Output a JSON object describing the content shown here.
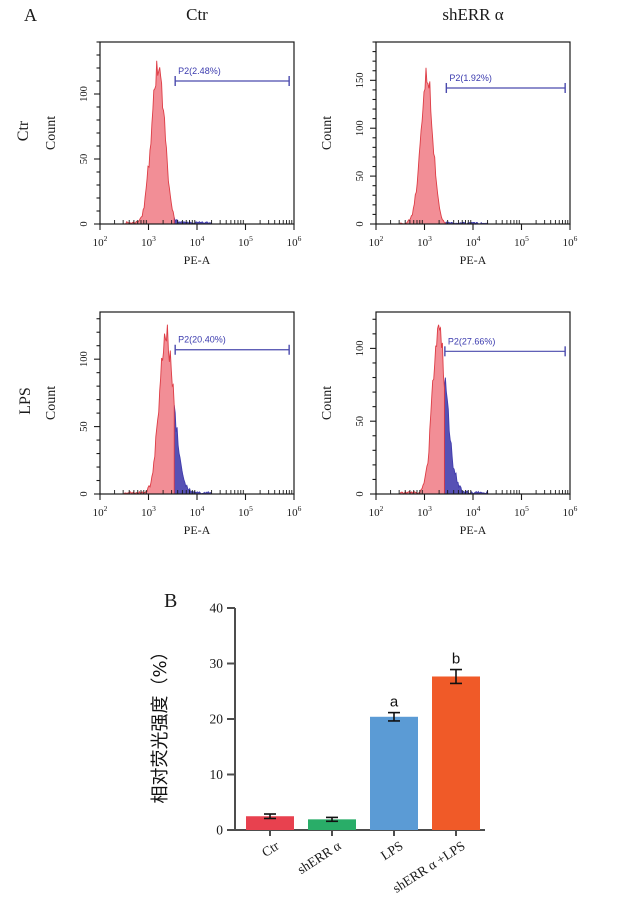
{
  "figure": {
    "panel_a_label": "A",
    "panel_b_label": "B"
  },
  "panel_a": {
    "col_headers": [
      "Ctr",
      "shERR α"
    ],
    "row_headers": [
      "Ctr",
      "LPS"
    ],
    "xlabel": "PE-A",
    "ylabel": "Count"
  },
  "colors": {
    "hist_fill": "#F28E96",
    "hist_stroke": "#DD3C45",
    "tail_fill": "#5751B5",
    "tail_stroke": "#413DAD",
    "gate_line": "#4A4AAD",
    "gate_text": "#3A3AAE",
    "frame": "#1a1a1a",
    "bar_axis": "#4d4d4d"
  },
  "chart_data": [
    {
      "type": "area",
      "subtype": "flow_histogram",
      "row": "Ctr",
      "col": "Ctr",
      "xlabel": "PE-A",
      "ylabel": "Count",
      "xlim_log10": [
        2,
        6
      ],
      "x_ticks_log10": [
        2,
        3,
        4,
        5,
        6
      ],
      "ylim": [
        0,
        140
      ],
      "y_ticks": [
        0,
        50,
        100
      ],
      "peak": {
        "x_log10": 3.2,
        "count": 120
      },
      "sigma_log10": {
        "left": 0.14,
        "right": 0.13
      },
      "gate": {
        "label": "P2(2.48%)",
        "percent": 2.48,
        "start_log10": 3.55,
        "end_log10": 5.9,
        "bracket_count": 110
      },
      "seed": 7
    },
    {
      "type": "area",
      "subtype": "flow_histogram",
      "row": "Ctr",
      "col": "shERR α",
      "xlabel": "PE-A",
      "ylabel": "Count",
      "xlim_log10": [
        2,
        6
      ],
      "x_ticks_log10": [
        2,
        3,
        4,
        5,
        6
      ],
      "ylim": [
        0,
        190
      ],
      "y_ticks": [
        0,
        50,
        100,
        150
      ],
      "peak": {
        "x_log10": 3.05,
        "count": 155
      },
      "sigma_log10": {
        "left": 0.13,
        "right": 0.12
      },
      "gate": {
        "label": "P2(1.92%)",
        "percent": 1.92,
        "start_log10": 3.45,
        "end_log10": 5.9,
        "bracket_count": 142
      },
      "seed": 13
    },
    {
      "type": "area",
      "subtype": "flow_histogram",
      "row": "LPS",
      "col": "Ctr",
      "xlabel": "PE-A",
      "ylabel": "Count",
      "xlim_log10": [
        2,
        6
      ],
      "x_ticks_log10": [
        2,
        3,
        4,
        5,
        6
      ],
      "ylim": [
        0,
        135
      ],
      "y_ticks": [
        0,
        50,
        100
      ],
      "peak": {
        "x_log10": 3.35,
        "count": 118
      },
      "sigma_log10": {
        "left": 0.13,
        "right": 0.17
      },
      "gate": {
        "label": "P2(20.40%)",
        "percent": 20.4,
        "start_log10": 3.55,
        "end_log10": 5.9,
        "bracket_count": 107
      },
      "seed": 21
    },
    {
      "type": "area",
      "subtype": "flow_histogram",
      "row": "LPS",
      "col": "shERR α",
      "xlabel": "PE-A",
      "ylabel": "Count",
      "xlim_log10": [
        2,
        6
      ],
      "x_ticks_log10": [
        2,
        3,
        4,
        5,
        6
      ],
      "ylim": [
        0,
        125
      ],
      "y_ticks": [
        0,
        50,
        100
      ],
      "peak": {
        "x_log10": 3.28,
        "count": 108
      },
      "sigma_log10": {
        "left": 0.12,
        "right": 0.17
      },
      "gate": {
        "label": "P2(27.66%)",
        "percent": 27.66,
        "start_log10": 3.42,
        "end_log10": 5.9,
        "bracket_count": 98
      },
      "seed": 33
    },
    {
      "type": "bar",
      "categories": [
        "Ctr",
        "shERR α",
        "LPS",
        "shERR α +LPS"
      ],
      "values": [
        2.48,
        1.92,
        20.4,
        27.66
      ],
      "errors": [
        0.4,
        0.35,
        0.75,
        1.25
      ],
      "annotations": [
        "",
        "",
        "a",
        "b"
      ],
      "bar_colors": [
        "#E8414F",
        "#29AD68",
        "#5B9BD5",
        "#F05A28"
      ],
      "ylabel": "相对荧光强度（%）",
      "ylim": [
        0,
        40
      ],
      "y_ticks": [
        0,
        10,
        20,
        30,
        40
      ],
      "grid": false,
      "legend": false
    }
  ]
}
